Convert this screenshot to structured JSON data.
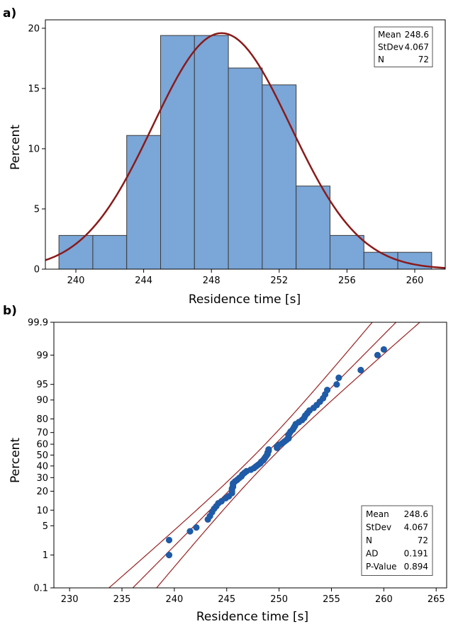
{
  "colors": {
    "bar_fill": "#7aa6d8",
    "bar_stroke": "#3a3a3a",
    "fit_line": "#8b1a1a",
    "point_fill": "#1f5ba6",
    "ci_line": "#9b2020"
  },
  "chart_data": [
    {
      "type": "bar",
      "panel_label": "a)",
      "subtype": "histogram",
      "bins": [
        {
          "x0": 239,
          "x1": 241,
          "value": 2.8
        },
        {
          "x0": 241,
          "x1": 243,
          "value": 2.8
        },
        {
          "x0": 243,
          "x1": 245,
          "value": 11.1
        },
        {
          "x0": 245,
          "x1": 247,
          "value": 19.4
        },
        {
          "x0": 247,
          "x1": 249,
          "value": 19.4
        },
        {
          "x0": 249,
          "x1": 251,
          "value": 16.7
        },
        {
          "x0": 251,
          "x1": 253,
          "value": 15.3
        },
        {
          "x0": 253,
          "x1": 255,
          "value": 6.9
        },
        {
          "x0": 255,
          "x1": 257,
          "value": 2.8
        },
        {
          "x0": 257,
          "x1": 259,
          "value": 1.4
        },
        {
          "x0": 259,
          "x1": 261,
          "value": 1.4
        }
      ],
      "xlabel": "Residence time [s]",
      "ylabel": "Percent",
      "xlim": [
        238.2,
        261.8
      ],
      "ylim": [
        0,
        20.7
      ],
      "xticks": [
        "240",
        "244",
        "248",
        "252",
        "256",
        "260"
      ],
      "yticks": [
        "0",
        "5",
        "10",
        "15",
        "20"
      ],
      "fit": {
        "type": "normal",
        "mean": 248.6,
        "stdev": 4.067,
        "peak": 19.6
      },
      "legend": {
        "position": "top-right",
        "rows": [
          {
            "label": "Mean",
            "value": "248.6"
          },
          {
            "label": "StDev",
            "value": "4.067"
          },
          {
            "label": "N",
            "value": "72"
          }
        ]
      }
    },
    {
      "type": "scatter",
      "panel_label": "b)",
      "subtype": "normal probability plot",
      "xlabel": "Residence time [s]",
      "ylabel": "Percent",
      "xlim": [
        228.5,
        266
      ],
      "xticks": [
        "230",
        "235",
        "240",
        "245",
        "250",
        "255",
        "260",
        "265"
      ],
      "yticks": [
        "0.1",
        "1",
        "5",
        "10",
        "20",
        "30",
        "40",
        "50",
        "60",
        "70",
        "80",
        "90",
        "95",
        "99",
        "99.9"
      ],
      "y_scale": "normal probability",
      "fit": {
        "mean": 248.6,
        "stdev": 4.067,
        "n": 72,
        "ci": "95%"
      },
      "points": [
        [
          239.5,
          1.0
        ],
        [
          239.5,
          2.4
        ],
        [
          241.5,
          3.8
        ],
        [
          242.1,
          4.6
        ],
        [
          243.2,
          6.7
        ],
        [
          243.4,
          7.8
        ],
        [
          243.6,
          9.2
        ],
        [
          243.8,
          10.6
        ],
        [
          244.0,
          11.7
        ],
        [
          244.2,
          13.1
        ],
        [
          244.5,
          14.1
        ],
        [
          244.9,
          15.8
        ],
        [
          245.2,
          16.9
        ],
        [
          245.5,
          18.8
        ],
        [
          245.5,
          20.3
        ],
        [
          245.5,
          21.7
        ],
        [
          245.6,
          23.0
        ],
        [
          245.6,
          24.2
        ],
        [
          245.6,
          25.5
        ],
        [
          245.8,
          27.0
        ],
        [
          246.0,
          28.2
        ],
        [
          246.2,
          29.7
        ],
        [
          246.4,
          31.0
        ],
        [
          246.5,
          32.5
        ],
        [
          246.7,
          34.0
        ],
        [
          246.9,
          35.4
        ],
        [
          247.3,
          36.7
        ],
        [
          247.6,
          38.1
        ],
        [
          247.8,
          39.6
        ],
        [
          248.0,
          41.0
        ],
        [
          248.2,
          42.3
        ],
        [
          248.3,
          43.8
        ],
        [
          248.5,
          45.2
        ],
        [
          248.6,
          46.7
        ],
        [
          248.7,
          48.1
        ],
        [
          248.8,
          49.5
        ],
        [
          248.9,
          50.9
        ],
        [
          248.9,
          52.3
        ],
        [
          249.0,
          53.8
        ],
        [
          249.0,
          55.2
        ],
        [
          249.8,
          56.6
        ],
        [
          249.8,
          58.0
        ],
        [
          250.0,
          59.4
        ],
        [
          250.3,
          60.8
        ],
        [
          250.5,
          62.3
        ],
        [
          250.7,
          63.7
        ],
        [
          250.9,
          65.1
        ],
        [
          250.9,
          66.6
        ],
        [
          250.9,
          68.0
        ],
        [
          251.0,
          69.4
        ],
        [
          251.1,
          70.8
        ],
        [
          251.3,
          72.3
        ],
        [
          251.4,
          73.7
        ],
        [
          251.5,
          75.0
        ],
        [
          251.6,
          76.5
        ],
        [
          251.9,
          77.9
        ],
        [
          252.2,
          79.3
        ],
        [
          252.4,
          80.7
        ],
        [
          252.5,
          82.1
        ],
        [
          252.7,
          83.5
        ],
        [
          252.9,
          85.0
        ],
        [
          253.3,
          86.4
        ],
        [
          253.6,
          87.8
        ],
        [
          253.9,
          89.3
        ],
        [
          254.2,
          90.7
        ],
        [
          254.4,
          92.1
        ],
        [
          254.6,
          93.5
        ],
        [
          255.5,
          95.0
        ],
        [
          255.7,
          96.4
        ],
        [
          257.8,
          97.6
        ],
        [
          259.4,
          99.0
        ],
        [
          260.0,
          99.3
        ]
      ],
      "legend": {
        "position": "bottom-right",
        "rows": [
          {
            "label": "Mean",
            "value": "248.6"
          },
          {
            "label": "StDev",
            "value": "4.067"
          },
          {
            "label": "N",
            "value": "72"
          },
          {
            "label": "AD",
            "value": "0.191"
          },
          {
            "label": "P-Value",
            "value": "0.894"
          }
        ]
      }
    }
  ]
}
